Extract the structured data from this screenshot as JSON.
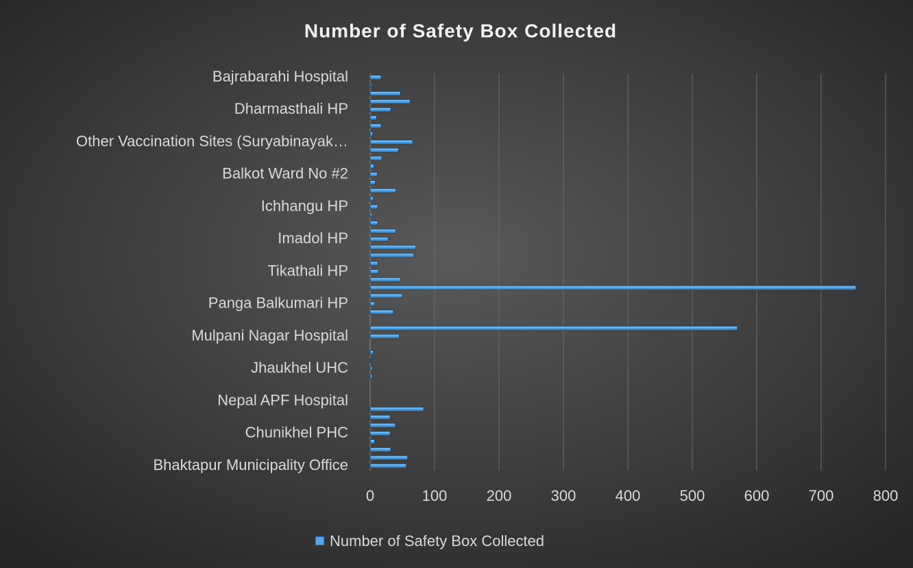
{
  "chart_data": {
    "type": "bar",
    "orientation": "horizontal",
    "title": "Number of Safety Box Collected",
    "categories": [
      "Bhaktapur Municipality Office",
      null,
      null,
      null,
      "Chunikhel PHC",
      null,
      null,
      null,
      "Nepal APF Hospital",
      null,
      null,
      null,
      "Jhaukhel UHC",
      null,
      null,
      null,
      "Mulpani Nagar Hospital",
      null,
      null,
      null,
      "Panga Balkumari HP",
      null,
      null,
      null,
      "Tikathali HP",
      null,
      null,
      null,
      "Imadol HP",
      null,
      null,
      null,
      "Ichhangu HP",
      null,
      null,
      null,
      "Balkot Ward No #2",
      null,
      null,
      null,
      "Other Vaccination Sites (Suryabinayak…",
      null,
      null,
      null,
      "Dharmasthali HP",
      null,
      null,
      null,
      "Bajrabarahi Hospital"
    ],
    "series": [
      {
        "name": "Number of Safety Box Collected",
        "color": "#5aa7e6",
        "values": [
          56,
          58,
          32,
          7,
          31,
          39,
          31,
          83,
          0,
          0,
          0,
          3,
          3,
          1,
          5,
          0,
          45,
          570,
          0,
          36,
          7,
          50,
          754,
          47,
          13,
          12,
          68,
          71,
          28,
          40,
          12,
          3,
          12,
          5,
          40,
          8,
          11,
          6,
          18,
          44,
          66,
          4,
          17,
          10,
          32,
          62,
          47,
          2,
          17
        ]
      }
    ],
    "xlim": [
      0,
      800
    ],
    "xticks": [
      0,
      100,
      200,
      300,
      400,
      500,
      600,
      700,
      800
    ],
    "grid": true,
    "legend": "bottom"
  }
}
